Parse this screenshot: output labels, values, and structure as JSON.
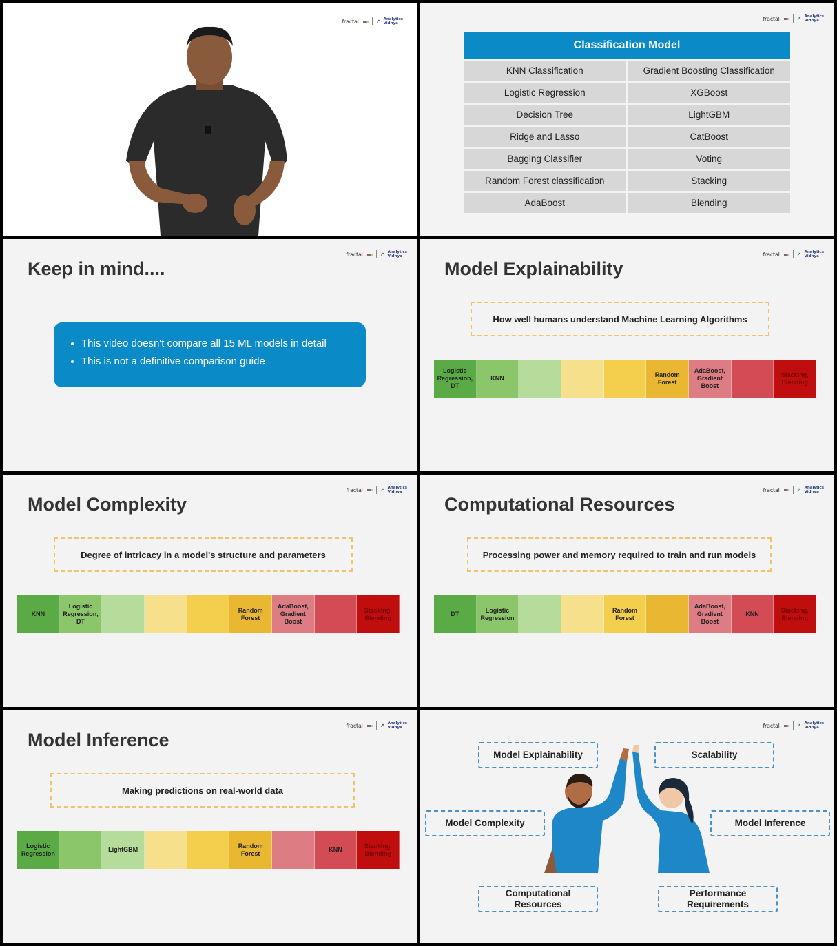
{
  "brand": {
    "logo1": "fractal",
    "logo2a": "Analytics",
    "logo2b": "Vidhya"
  },
  "slide2": {
    "header": "Classification Model",
    "rows": [
      [
        "KNN Classification",
        "Gradient Boosting Classification"
      ],
      [
        "Logistic Regression",
        "XGBoost"
      ],
      [
        "Decision Tree",
        "LightGBM"
      ],
      [
        "Ridge and Lasso",
        "CatBoost"
      ],
      [
        "Bagging Classifier",
        "Voting"
      ],
      [
        "Random Forest classification",
        "Stacking"
      ],
      [
        "AdaBoost",
        "Blending"
      ]
    ]
  },
  "slide3": {
    "title": "Keep in mind....",
    "bullets": [
      "This video doesn't compare all 15 ML models in detail",
      "This is not a definitive comparison guide"
    ]
  },
  "slide4": {
    "title": "Model Explainability",
    "definition": "How well humans understand Machine Learning Algorithms",
    "scale": [
      {
        "label": "Logistic\nRegression,\nDT",
        "color": "#5aaa46"
      },
      {
        "label": "KNN",
        "color": "#8cc66a"
      },
      {
        "label": "",
        "color": "#b5dc9a"
      },
      {
        "label": "",
        "color": "#f7e08c"
      },
      {
        "label": "",
        "color": "#f4cf4e"
      },
      {
        "label": "Random\nForest",
        "color": "#e9b732"
      },
      {
        "label": "AdaBoost,\nGradient\nBoost",
        "color": "#dd7c83"
      },
      {
        "label": "",
        "color": "#d24b55"
      },
      {
        "label": "Stacking,\nBlending",
        "color": "#c00d0d"
      }
    ]
  },
  "slide5": {
    "title": "Model Complexity",
    "definition": "Degree of intricacy in a model's structure and parameters",
    "scale": [
      {
        "label": "KNN",
        "color": "#5aaa46"
      },
      {
        "label": "Logistic\nRegression,\nDT",
        "color": "#8cc66a"
      },
      {
        "label": "",
        "color": "#b5dc9a"
      },
      {
        "label": "",
        "color": "#f7e08c"
      },
      {
        "label": "",
        "color": "#f4cf4e"
      },
      {
        "label": "Random\nForest",
        "color": "#e9b732"
      },
      {
        "label": "AdaBoost,\nGradient\nBoost",
        "color": "#dd7c83"
      },
      {
        "label": "",
        "color": "#d24b55"
      },
      {
        "label": "Stacking,\nBlending",
        "color": "#c00d0d"
      }
    ]
  },
  "slide6": {
    "title": "Computational Resources",
    "definition": "Processing power and memory required to train and run models",
    "scale": [
      {
        "label": "DT",
        "color": "#5aaa46"
      },
      {
        "label": "Logistic\nRegression",
        "color": "#8cc66a"
      },
      {
        "label": "",
        "color": "#b5dc9a"
      },
      {
        "label": "",
        "color": "#f7e08c"
      },
      {
        "label": "Random\nForest",
        "color": "#f4cf4e"
      },
      {
        "label": "",
        "color": "#e9b732"
      },
      {
        "label": "AdaBoost,\nGradient\nBoost",
        "color": "#dd7c83"
      },
      {
        "label": "KNN",
        "color": "#d24b55"
      },
      {
        "label": "Stacking,\nBlending",
        "color": "#c00d0d"
      }
    ]
  },
  "slide7": {
    "title": "Model Inference",
    "definition": "Making predictions on real-world data",
    "scale": [
      {
        "label": "Logistic\nRegression",
        "color": "#5aaa46"
      },
      {
        "label": "",
        "color": "#8cc66a"
      },
      {
        "label": "LightGBM",
        "color": "#b5dc9a"
      },
      {
        "label": "",
        "color": "#f7e08c"
      },
      {
        "label": "",
        "color": "#f4cf4e"
      },
      {
        "label": "Random\nForest",
        "color": "#e9b732"
      },
      {
        "label": "",
        "color": "#dd7c83"
      },
      {
        "label": "KNN",
        "color": "#d24b55"
      },
      {
        "label": "Stacking,\nBlending",
        "color": "#c00d0d"
      }
    ]
  },
  "slide8": {
    "tags": {
      "explainability": "Model Explainability",
      "scalability": "Scalability",
      "complexity": "Model Complexity",
      "inference": "Model Inference",
      "computational": "Computational\nResources",
      "performance": "Performance\nRequirements"
    }
  }
}
